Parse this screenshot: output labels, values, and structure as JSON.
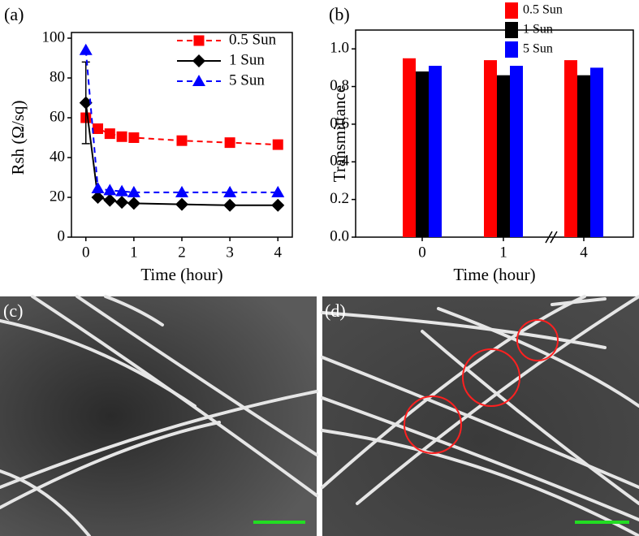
{
  "chart_data": [
    {
      "type": "line",
      "panel": "(a)",
      "x_label": "Time (hour)",
      "y_label": "Rsh (Ω/sq)",
      "x": [
        0,
        0.25,
        0.5,
        0.75,
        1,
        2,
        3,
        4
      ],
      "series": [
        {
          "name": "0.5 Sun",
          "color": "#ff0000",
          "marker": "square",
          "dashed": true,
          "values": [
            60,
            54.5,
            52,
            50.5,
            50,
            48.5,
            47.5,
            46.5
          ]
        },
        {
          "name": "1 Sun",
          "color": "#000000",
          "marker": "diamond",
          "dashed": false,
          "values": [
            67.5,
            20,
            18.5,
            17.5,
            17,
            16.5,
            16,
            16
          ],
          "errors": [
            20.5,
            null,
            null,
            null,
            null,
            null,
            null,
            null
          ]
        },
        {
          "name": "5 Sun",
          "color": "#0000ff",
          "marker": "triangle",
          "dashed": true,
          "values": [
            94,
            24.5,
            23.5,
            23,
            22.5,
            22.5,
            22.5,
            22.5
          ]
        }
      ],
      "xlim": [
        -0.3,
        4.3
      ],
      "xticks": [
        0,
        1,
        2,
        3,
        4
      ],
      "ylim": [
        0,
        100
      ],
      "yticks": [
        0,
        20,
        40,
        60,
        80,
        100
      ]
    },
    {
      "type": "bar",
      "panel": "(b)",
      "x_label": "Time (hour)",
      "y_label": "Transmittance",
      "categories": [
        "0",
        "1",
        "4"
      ],
      "series": [
        {
          "name": "0.5 Sun",
          "color": "#ff0000",
          "values": [
            0.95,
            0.94,
            0.94
          ]
        },
        {
          "name": "1 Sun",
          "color": "#000000",
          "values": [
            0.88,
            0.86,
            0.86
          ]
        },
        {
          "name": "5 Sun",
          "color": "#0000ff",
          "values": [
            0.91,
            0.91,
            0.9
          ]
        }
      ],
      "ylim": [
        0,
        1.1
      ],
      "yticks": [
        {
          "value": 0,
          "label": "0.0"
        },
        0.2,
        0.4,
        0.6,
        0.8,
        {
          "value": 1,
          "label": "1.0"
        }
      ]
    }
  ],
  "images": [
    {
      "panel": "(c)"
    },
    {
      "panel": "(d)"
    }
  ]
}
